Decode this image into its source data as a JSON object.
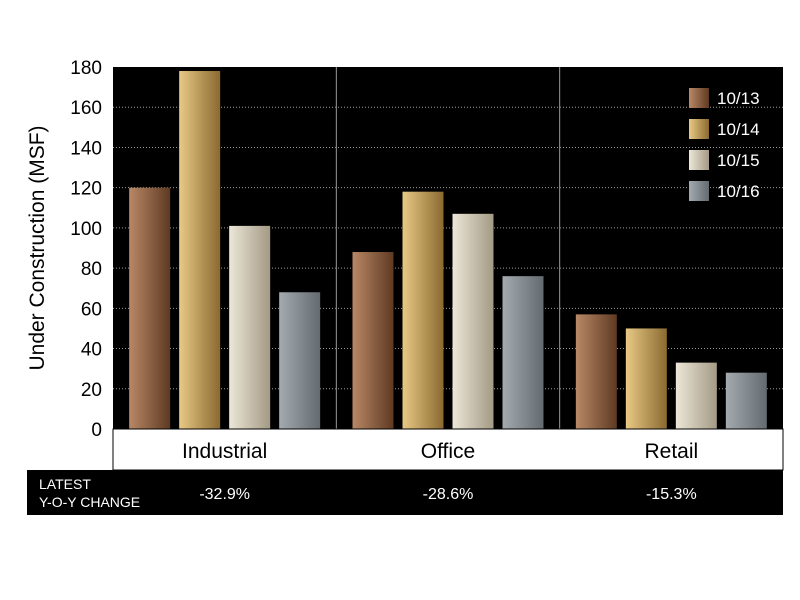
{
  "chart_data": {
    "type": "bar",
    "title": "",
    "xlabel": "",
    "ylabel": "Under Construction (MSF)",
    "ylim": [
      0,
      180
    ],
    "yticks": [
      0,
      20,
      40,
      60,
      80,
      100,
      120,
      140,
      160,
      180
    ],
    "categories": [
      "Industrial",
      "Office",
      "Retail"
    ],
    "series": [
      {
        "name": "10/13",
        "values": [
          120,
          88,
          57
        ],
        "color_dark": "#5e3a22",
        "color_light": "#b98866"
      },
      {
        "name": "10/14",
        "values": [
          178,
          118,
          50
        ],
        "color_dark": "#8a6a30",
        "color_light": "#e9c985"
      },
      {
        "name": "10/15",
        "values": [
          101,
          107,
          33
        ],
        "color_dark": "#a49a85",
        "color_light": "#ece7d8"
      },
      {
        "name": "10/16",
        "values": [
          68,
          76,
          28
        ],
        "color_dark": "#636a70",
        "color_light": "#a3aab0"
      }
    ],
    "legend_position": "top-right",
    "grid": true,
    "background": "#000000"
  },
  "yoy": {
    "label_line1": "LATEST",
    "label_line2": "Y-O-Y CHANGE",
    "values": [
      "-32.9%",
      "-28.6%",
      "-15.3%"
    ]
  }
}
